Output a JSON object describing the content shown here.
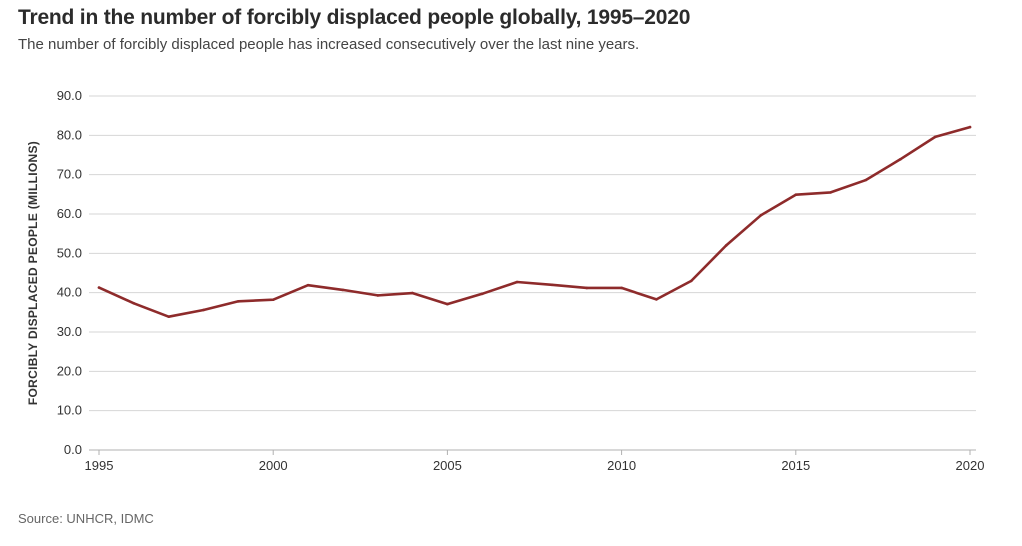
{
  "chart_data": {
    "type": "line",
    "title": "Trend in the number of forcibly displaced people globally, 1995–2020",
    "subtitle": "The number of forcibly displaced people has increased consecutively over the last nine years.",
    "ylabel": "FORCIBLY DISPLACED PEOPLE (MILLIONS)",
    "xlabel": "",
    "source": "Source: UNHCR, IDMC",
    "x": [
      1995,
      1996,
      1997,
      1998,
      1999,
      2000,
      2001,
      2002,
      2003,
      2004,
      2005,
      2006,
      2007,
      2008,
      2009,
      2010,
      2011,
      2012,
      2013,
      2014,
      2015,
      2016,
      2017,
      2018,
      2019,
      2020
    ],
    "series": [
      {
        "name": "",
        "color": "#8e2b2b",
        "values": [
          41.3,
          37.3,
          33.9,
          35.6,
          37.8,
          38.2,
          41.9,
          40.7,
          39.3,
          39.9,
          37.1,
          39.7,
          42.7,
          42.0,
          41.2,
          41.2,
          38.3,
          43.0,
          52.0,
          59.7,
          64.9,
          65.5,
          68.6,
          73.9,
          79.6,
          82.1
        ]
      }
    ],
    "xlim": [
      1995,
      2020
    ],
    "ylim": [
      0,
      90
    ],
    "xticks": [
      1995,
      2000,
      2005,
      2010,
      2015,
      2020
    ],
    "yticks": [
      0,
      10,
      20,
      30,
      40,
      50,
      60,
      70,
      80,
      90
    ],
    "ytick_labels": [
      "0.0",
      "10.0",
      "20.0",
      "30.0",
      "40.0",
      "50.0",
      "60.0",
      "70.0",
      "80.0",
      "90.0"
    ],
    "grid": "horizontal",
    "gridColor": "#d6d6d6",
    "axisColor": "#b0b0b0"
  }
}
